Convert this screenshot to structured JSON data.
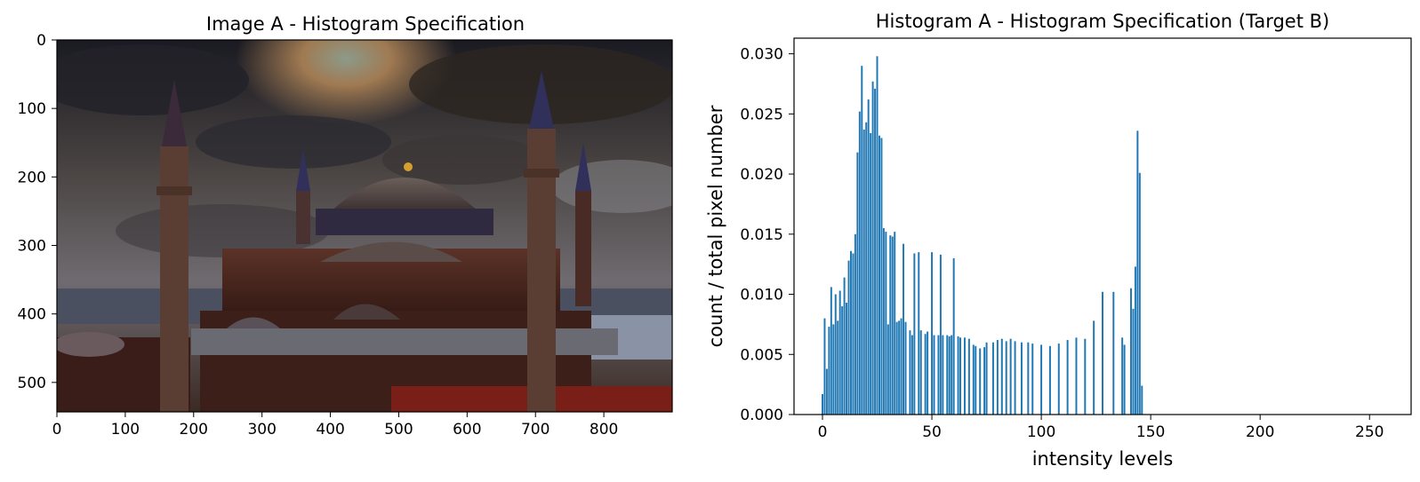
{
  "chart_data": [
    {
      "type": "image",
      "title": "Image A - Histogram Specification",
      "xticks": [
        "0",
        "100",
        "200",
        "300",
        "400",
        "500",
        "600",
        "700",
        "800"
      ],
      "yticks": [
        "0",
        "100",
        "200",
        "300",
        "400",
        "500"
      ],
      "xlim": [
        0,
        900
      ],
      "ylim": [
        543,
        0
      ],
      "image_content": "photograph of the Hagia Sophia with four minarets under a dark, cloudy sky"
    },
    {
      "type": "bar",
      "title": "Histogram A - Histogram Specification (Target B)",
      "xlabel": "intensity levels",
      "ylabel": "count / total pixel number",
      "xticks": [
        "0",
        "50",
        "100",
        "150",
        "200",
        "250"
      ],
      "yticks": [
        "0.000",
        "0.005",
        "0.010",
        "0.015",
        "0.020",
        "0.025",
        "0.030"
      ],
      "xlim": [
        -13,
        269
      ],
      "ylim": [
        0,
        0.0313
      ],
      "bar_color": "#1f77b4",
      "x": [
        0,
        1,
        2,
        3,
        4,
        5,
        6,
        7,
        8,
        9,
        10,
        11,
        12,
        13,
        14,
        15,
        16,
        17,
        18,
        19,
        20,
        21,
        22,
        23,
        24,
        25,
        26,
        27,
        28,
        29,
        30,
        31,
        32,
        33,
        34,
        35,
        36,
        37,
        38,
        40,
        41,
        42,
        44,
        45,
        47,
        48,
        50,
        51,
        53,
        54,
        55,
        57,
        58,
        59,
        60,
        62,
        63,
        65,
        67,
        69,
        70,
        72,
        74,
        75,
        78,
        80,
        82,
        84,
        86,
        88,
        91,
        94,
        96,
        100,
        104,
        108,
        112,
        116,
        120,
        124,
        128,
        133,
        137,
        138,
        141,
        142,
        143,
        144,
        145,
        146,
        147
      ],
      "values": [
        0.0017,
        0.008,
        0.0038,
        0.0073,
        0.0106,
        0.0075,
        0.01,
        0.0078,
        0.0103,
        0.009,
        0.0114,
        0.0093,
        0.0128,
        0.0136,
        0.0134,
        0.015,
        0.0218,
        0.0252,
        0.029,
        0.0237,
        0.0243,
        0.0262,
        0.0234,
        0.0277,
        0.0271,
        0.0298,
        0.0232,
        0.023,
        0.0155,
        0.0152,
        0.0075,
        0.0149,
        0.0148,
        0.0152,
        0.0077,
        0.0078,
        0.008,
        0.0142,
        0.0077,
        0.007,
        0.0066,
        0.0134,
        0.0135,
        0.007,
        0.0067,
        0.0069,
        0.0135,
        0.0066,
        0.0066,
        0.0133,
        0.0066,
        0.0066,
        0.0065,
        0.0066,
        0.013,
        0.0065,
        0.0064,
        0.0064,
        0.0063,
        0.0058,
        0.0057,
        0.0055,
        0.0056,
        0.006,
        0.006,
        0.0062,
        0.0063,
        0.0061,
        0.0063,
        0.0061,
        0.006,
        0.006,
        0.0059,
        0.0058,
        0.0057,
        0.0059,
        0.0062,
        0.0064,
        0.0063,
        0.0078,
        0.0102,
        0.0102,
        0.0064,
        0.0058,
        0.0105,
        0.0088,
        0.0123,
        0.0236,
        0.0201,
        0.0024,
        0.0
      ]
    }
  ]
}
